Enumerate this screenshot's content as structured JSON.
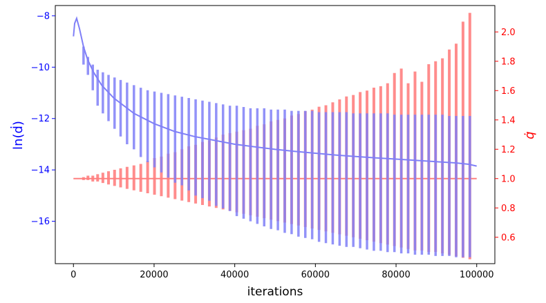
{
  "chart_data": {
    "type": "line",
    "title": "",
    "xlabel": "iterations",
    "ylabel_left": "ln(ḋ)",
    "ylabel_right": "q̇",
    "xlim": [
      -4500,
      104500
    ],
    "ylim_left": [
      -17.65,
      -7.6
    ],
    "ylim_right": [
      0.42,
      2.18
    ],
    "grid": false,
    "legend": "none",
    "colors": {
      "left_axis": "#0000ff",
      "right_axis": "#ff0000",
      "d_series": "#7f7ff7",
      "q_series": "#ff7f7f",
      "overlap": "#c0347a"
    },
    "x_ticks": [
      {
        "v": 0,
        "label": "0"
      },
      {
        "v": 20000,
        "label": "20000"
      },
      {
        "v": 40000,
        "label": "40000"
      },
      {
        "v": 60000,
        "label": "60000"
      },
      {
        "v": 80000,
        "label": "80000"
      },
      {
        "v": 100000,
        "label": "100000"
      }
    ],
    "y_ticks_left": [
      {
        "v": -8,
        "label": "−8"
      },
      {
        "v": -10,
        "label": "−10"
      },
      {
        "v": -12,
        "label": "−12"
      },
      {
        "v": -14,
        "label": "−14"
      },
      {
        "v": -16,
        "label": "−16"
      }
    ],
    "y_ticks_right": [
      {
        "v": 0.6,
        "label": "0.6"
      },
      {
        "v": 0.8,
        "label": "0.8"
      },
      {
        "v": 1.0,
        "label": "1.0"
      },
      {
        "v": 1.2,
        "label": "1.2"
      },
      {
        "v": 1.4,
        "label": "1.4"
      },
      {
        "v": 1.6,
        "label": "1.6"
      },
      {
        "v": 1.8,
        "label": "1.8"
      },
      {
        "v": 2.0,
        "label": "2.0"
      }
    ],
    "d_trend": {
      "axis": "left",
      "x": [
        0,
        300,
        800,
        1500,
        2500,
        3500,
        5000,
        7000,
        10000,
        15000,
        20000,
        25000,
        30000,
        35000,
        40000,
        45000,
        50000,
        55000,
        60000,
        65000,
        70000,
        75000,
        80000,
        85000,
        90000,
        95000,
        98000,
        100000
      ],
      "y": [
        -8.8,
        -8.3,
        -8.1,
        -8.5,
        -9.2,
        -9.7,
        -10.2,
        -10.7,
        -11.2,
        -11.8,
        -12.2,
        -12.5,
        -12.7,
        -12.85,
        -13.0,
        -13.1,
        -13.2,
        -13.28,
        -13.35,
        -13.42,
        -13.48,
        -13.53,
        -13.58,
        -13.63,
        -13.68,
        -13.73,
        -13.78,
        -13.85
      ]
    },
    "d_spikes": {
      "axis": "left",
      "x": [
        2500,
        3600,
        4800,
        6000,
        7300,
        8700,
        10200,
        11700,
        13300,
        15000,
        16700,
        18400,
        20100,
        21800,
        23500,
        25200,
        26900,
        28600,
        30300,
        32000,
        33700,
        35400,
        37100,
        38800,
        40500,
        42200,
        43900,
        45600,
        47300,
        49000,
        50700,
        52400,
        54100,
        55800,
        57500,
        59200,
        60900,
        62600,
        64300,
        66000,
        67700,
        69400,
        71100,
        72800,
        74500,
        76200,
        77900,
        79600,
        81300,
        83000,
        84700,
        86400,
        88100,
        89800,
        91500,
        93200,
        94900,
        96600,
        98300
      ],
      "top": [
        -9.2,
        -9.6,
        -9.9,
        -10.1,
        -10.2,
        -10.3,
        -10.4,
        -10.5,
        -10.6,
        -10.7,
        -10.8,
        -10.9,
        -10.95,
        -11.0,
        -11.05,
        -11.1,
        -11.15,
        -11.2,
        -11.25,
        -11.3,
        -11.35,
        -11.4,
        -11.45,
        -11.5,
        -11.5,
        -11.55,
        -11.6,
        -11.6,
        -11.6,
        -11.65,
        -11.65,
        -11.65,
        -11.7,
        -11.7,
        -11.7,
        -11.7,
        -11.75,
        -11.75,
        -11.75,
        -11.75,
        -11.75,
        -11.8,
        -11.8,
        -11.8,
        -11.8,
        -11.8,
        -11.8,
        -11.85,
        -11.85,
        -11.85,
        -11.85,
        -11.85,
        -11.85,
        -11.85,
        -11.85,
        -11.9,
        -11.9,
        -11.9,
        -11.9
      ],
      "bottom": [
        -9.9,
        -10.3,
        -10.9,
        -11.5,
        -11.8,
        -12.1,
        -12.4,
        -12.7,
        -13.0,
        -13.2,
        -13.5,
        -13.7,
        -13.9,
        -14.1,
        -14.3,
        -14.5,
        -14.6,
        -14.8,
        -15.0,
        -15.1,
        -15.2,
        -15.4,
        -15.5,
        -15.6,
        -15.8,
        -15.9,
        -16.0,
        -16.1,
        -16.2,
        -16.3,
        -16.35,
        -16.45,
        -16.5,
        -16.6,
        -16.65,
        -16.7,
        -16.8,
        -16.85,
        -16.9,
        -16.95,
        -17.0,
        -17.0,
        -17.05,
        -17.1,
        -17.15,
        -17.15,
        -17.2,
        -17.2,
        -17.25,
        -17.25,
        -17.3,
        -17.3,
        -17.3,
        -17.35,
        -17.35,
        -17.35,
        -17.4,
        -17.4,
        -17.4
      ]
    },
    "q_base": {
      "axis": "right",
      "x": [
        0,
        100000
      ],
      "y": [
        1.0,
        1.0
      ]
    },
    "q_spikes": {
      "axis": "right",
      "x": [
        2500,
        3600,
        4800,
        6000,
        7300,
        8700,
        10200,
        11700,
        13300,
        15000,
        16700,
        18400,
        20100,
        21800,
        23500,
        25200,
        26900,
        28600,
        30300,
        32000,
        33700,
        35400,
        37100,
        38800,
        40500,
        42200,
        43900,
        45600,
        47300,
        49000,
        50700,
        52400,
        54100,
        55800,
        57500,
        59200,
        60900,
        62600,
        64300,
        66000,
        67700,
        69400,
        71100,
        72800,
        74500,
        76200,
        77900,
        79600,
        81300,
        83000,
        84700,
        86400,
        88100,
        89800,
        91500,
        93200,
        94900,
        96600,
        98300
      ],
      "top": [
        1.01,
        1.02,
        1.02,
        1.03,
        1.04,
        1.05,
        1.06,
        1.07,
        1.08,
        1.09,
        1.1,
        1.12,
        1.14,
        1.15,
        1.17,
        1.18,
        1.2,
        1.22,
        1.23,
        1.25,
        1.26,
        1.28,
        1.3,
        1.31,
        1.32,
        1.33,
        1.34,
        1.36,
        1.37,
        1.39,
        1.4,
        1.41,
        1.43,
        1.44,
        1.46,
        1.47,
        1.49,
        1.5,
        1.52,
        1.54,
        1.56,
        1.57,
        1.59,
        1.6,
        1.62,
        1.63,
        1.65,
        1.72,
        1.75,
        1.65,
        1.73,
        1.66,
        1.78,
        1.8,
        1.82,
        1.88,
        1.92,
        2.07,
        2.13
      ],
      "bottom": [
        0.99,
        0.99,
        0.98,
        0.98,
        0.97,
        0.96,
        0.95,
        0.94,
        0.93,
        0.92,
        0.91,
        0.9,
        0.89,
        0.88,
        0.87,
        0.86,
        0.85,
        0.84,
        0.83,
        0.82,
        0.81,
        0.8,
        0.79,
        0.78,
        0.77,
        0.76,
        0.75,
        0.74,
        0.73,
        0.72,
        0.71,
        0.7,
        0.69,
        0.68,
        0.67,
        0.66,
        0.65,
        0.64,
        0.63,
        0.62,
        0.61,
        0.6,
        0.59,
        0.58,
        0.57,
        0.56,
        0.55,
        0.54,
        0.53,
        0.52,
        0.51,
        0.51,
        0.5,
        0.5,
        0.49,
        0.48,
        0.47,
        0.46,
        0.45
      ]
    }
  }
}
